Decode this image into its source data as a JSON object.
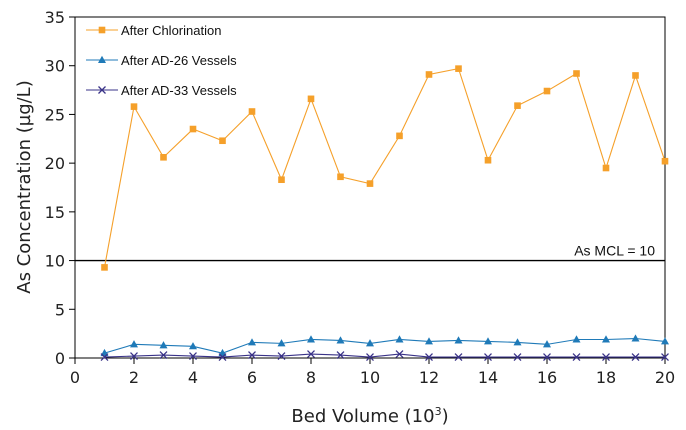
{
  "chart_data": {
    "type": "line",
    "xlabel": "Bed Volume (10",
    "xlabel_sup": "3",
    "xlabel_tail": ")",
    "ylabel": "As Concentration (µg/L)",
    "xlim": [
      0,
      20
    ],
    "ylim": [
      0,
      35
    ],
    "xticks": [
      0,
      2,
      4,
      6,
      8,
      10,
      12,
      14,
      16,
      18,
      20
    ],
    "yticks": [
      0,
      5,
      10,
      15,
      20,
      25,
      30,
      35
    ],
    "grid": false,
    "legend_position": "top-left",
    "x": [
      1,
      2,
      3,
      4,
      5,
      6,
      7,
      8,
      9,
      10,
      11,
      12,
      13,
      14,
      15,
      16,
      17,
      18,
      19,
      20
    ],
    "series": [
      {
        "name": "After Chlorination",
        "color": "#f5a02a",
        "marker": "square",
        "values": [
          9.3,
          25.8,
          20.6,
          23.5,
          22.3,
          25.3,
          18.3,
          26.6,
          18.6,
          17.9,
          22.8,
          29.1,
          29.7,
          20.3,
          25.9,
          27.4,
          29.2,
          19.5,
          29.0,
          20.2
        ]
      },
      {
        "name": "After AD-26 Vessels",
        "color": "#1f7ab8",
        "marker": "triangle",
        "values": [
          0.5,
          1.4,
          1.3,
          1.2,
          0.5,
          1.6,
          1.5,
          1.9,
          1.8,
          1.5,
          1.9,
          1.7,
          1.8,
          1.7,
          1.6,
          1.4,
          1.9,
          1.9,
          2.0,
          1.7
        ]
      },
      {
        "name": "After AD-33 Vessels",
        "color": "#3a3388",
        "marker": "x",
        "values": [
          0.1,
          0.2,
          0.3,
          0.2,
          0.1,
          0.3,
          0.2,
          0.4,
          0.3,
          0.1,
          0.4,
          0.1,
          0.1,
          0.1,
          0.1,
          0.1,
          0.1,
          0.1,
          0.1,
          0.1
        ]
      }
    ],
    "annotation": {
      "text": "As MCL = 10",
      "y": 10
    }
  }
}
